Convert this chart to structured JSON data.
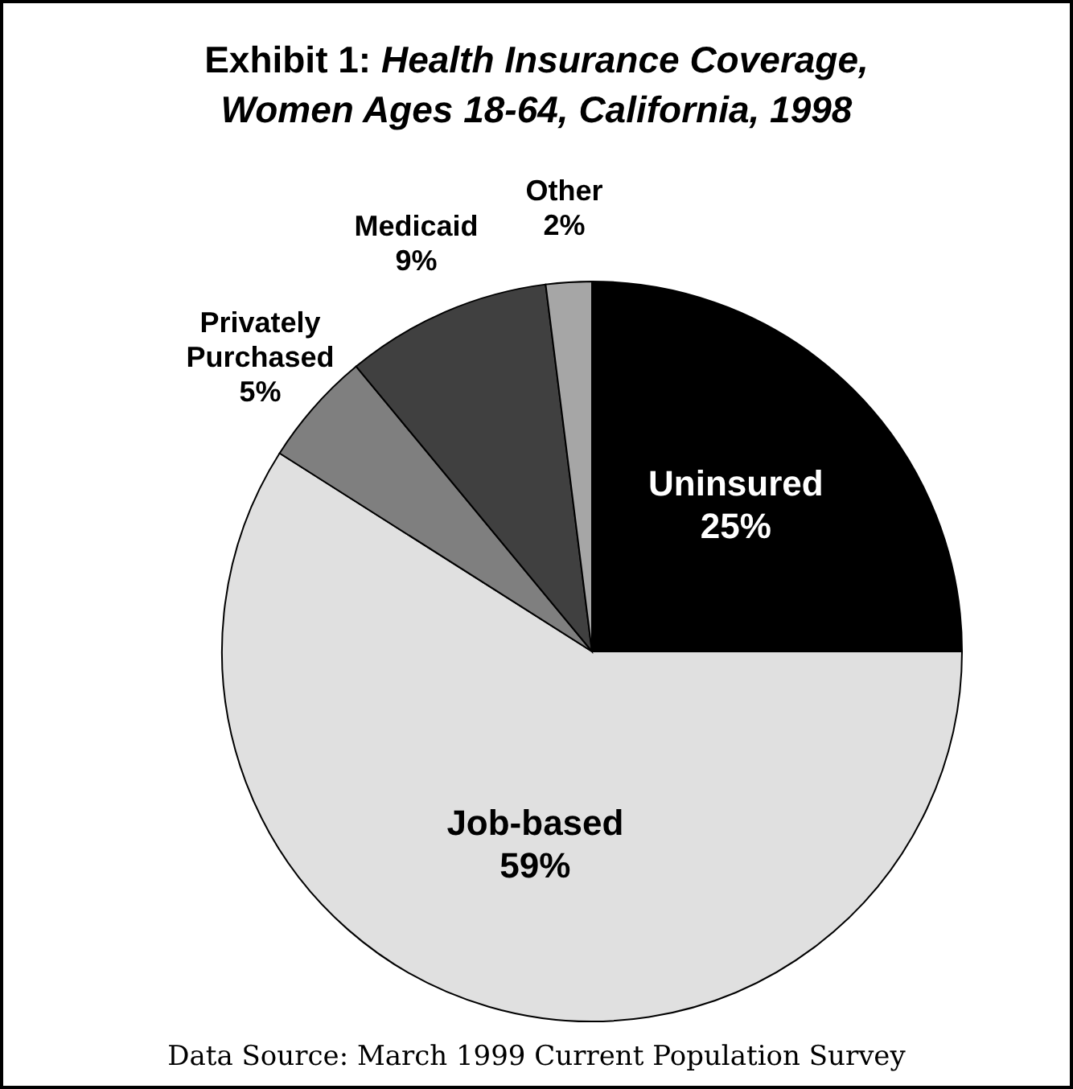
{
  "chart_data": {
    "type": "pie",
    "title": "Exhibit 1: Health Insurance Coverage, Women Ages 18-64, California, 1998",
    "categories": [
      "Uninsured",
      "Job-based",
      "Privately Purchased",
      "Medicaid",
      "Other"
    ],
    "values": [
      25,
      59,
      5,
      9,
      2
    ],
    "colors": [
      "#000000",
      "#e0e0e0",
      "#7f7f7f",
      "#404040",
      "#a6a6a6"
    ],
    "value_labels": [
      "25%",
      "59%",
      "5%",
      "9%",
      "2%"
    ],
    "annotations": [
      "Data Source: March 1999 Current Population Survey"
    ]
  }
}
